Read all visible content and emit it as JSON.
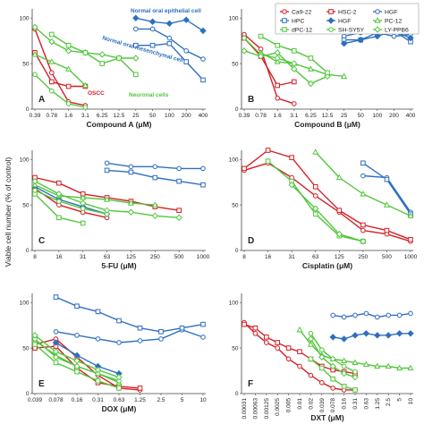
{
  "figure": {
    "ylabel": "Viable cell number (% of control)"
  },
  "legend": {
    "entries": [
      {
        "name": "Ca9-22",
        "color": "#d42027",
        "marker": "circle",
        "filled": false
      },
      {
        "name": "HSC-2",
        "color": "#d42027",
        "marker": "square",
        "filled": false
      },
      {
        "name": "HGF",
        "color": "#2e6fc0",
        "marker": "circle",
        "filled": false
      },
      {
        "name": "HPC",
        "color": "#2e6fc0",
        "marker": "square",
        "filled": false
      },
      {
        "name": "HGF",
        "color": "#2e6fc0",
        "marker": "diamond",
        "filled": true
      },
      {
        "name": "PC-12",
        "color": "#52c73c",
        "marker": "triangle",
        "filled": false
      },
      {
        "name": "dPC-12",
        "color": "#52c73c",
        "marker": "square",
        "filled": false
      },
      {
        "name": "SH-SY5Y",
        "color": "#52c73c",
        "marker": "circle",
        "filled": false
      },
      {
        "name": "LY-PPB6",
        "color": "#52c73c",
        "marker": "diamond",
        "filled": false
      }
    ]
  },
  "chart_data": [
    {
      "type": "line",
      "panel": "A",
      "xlabel": "Compound A (μM)",
      "categories": [
        "0.39",
        "0.78",
        "1.6",
        "3.1",
        "6.25",
        "12.5",
        "25",
        "50",
        "100",
        "200",
        "400"
      ],
      "ylim": [
        0,
        100
      ],
      "yticks": [
        0,
        50,
        100
      ],
      "annotations": [
        {
          "text": "Normal oral epithelial cell",
          "color": "#2e6fc0"
        },
        {
          "text": "Normal oral mesenchymal cell",
          "color": "#2e6fc0"
        },
        {
          "text": "OSCC",
          "color": "#d42027"
        },
        {
          "text": "Neuronal cells",
          "color": "#52c73c"
        }
      ],
      "series": [
        {
          "name": "Ca9-22",
          "values": [
            88,
            40,
            8,
            4,
            null,
            null,
            null,
            null,
            null,
            null,
            null
          ]
        },
        {
          "name": "HSC-2",
          "values": [
            62,
            30,
            25,
            25,
            null,
            null,
            null,
            null,
            null,
            null,
            null
          ]
        },
        {
          "name": "PC-12",
          "values": [
            60,
            52,
            44,
            26,
            null,
            null,
            null,
            null,
            null,
            null,
            null
          ]
        },
        {
          "name": "SH-SY5Y",
          "values": [
            38,
            20,
            6,
            2,
            null,
            null,
            null,
            null,
            null,
            null,
            null
          ]
        },
        {
          "name": "LY-PPB6",
          "values": [
            90,
            74,
            64,
            62,
            60,
            56,
            56,
            null,
            null,
            null,
            null
          ]
        },
        {
          "name": "HGF",
          "values": [
            null,
            null,
            null,
            null,
            null,
            null,
            88,
            88,
            78,
            64,
            55
          ]
        },
        {
          "name": "HPC",
          "values": [
            null,
            null,
            null,
            null,
            null,
            null,
            70,
            70,
            72,
            52,
            32
          ]
        },
        {
          "name": "HGF",
          "values": [
            null,
            null,
            null,
            null,
            null,
            null,
            100,
            96,
            94,
            98,
            86
          ]
        },
        {
          "name": "dPC-12",
          "values": [
            null,
            82,
            70,
            62,
            50,
            56,
            38,
            null,
            null,
            null,
            null
          ]
        }
      ]
    },
    {
      "type": "line",
      "panel": "B",
      "xlabel": "Compound B (μM)",
      "categories": [
        "0.39",
        "0.78",
        "1.6",
        "3.1",
        "6.25",
        "12.5",
        "25",
        "50",
        "100",
        "200",
        "400"
      ],
      "ylim": [
        0,
        100
      ],
      "yticks": [
        0,
        50,
        100
      ],
      "series": [
        {
          "name": "Ca9-22",
          "values": [
            82,
            66,
            12,
            6,
            null,
            null,
            null,
            null,
            null,
            null,
            null
          ]
        },
        {
          "name": "HSC-2",
          "values": [
            78,
            58,
            26,
            30,
            null,
            null,
            null,
            null,
            null,
            null,
            null
          ]
        },
        {
          "name": "PC-12",
          "values": [
            null,
            62,
            52,
            50,
            44,
            38,
            36,
            null,
            null,
            null,
            null
          ]
        },
        {
          "name": "SH-SY5Y",
          "values": [
            78,
            60,
            56,
            50,
            null,
            null,
            null,
            null,
            null,
            null,
            null
          ]
        },
        {
          "name": "LY-PPB6",
          "values": [
            64,
            58,
            62,
            44,
            28,
            36,
            null,
            null,
            null,
            null,
            null
          ]
        },
        {
          "name": "dPC-12",
          "values": [
            null,
            80,
            70,
            64,
            56,
            40,
            null,
            null,
            null,
            null,
            null
          ]
        },
        {
          "name": "HGF",
          "values": [
            null,
            null,
            null,
            null,
            null,
            null,
            80,
            84,
            84,
            80,
            82
          ]
        },
        {
          "name": "HPC",
          "values": [
            null,
            null,
            null,
            null,
            null,
            null,
            76,
            76,
            84,
            86,
            74
          ]
        },
        {
          "name": "HGF",
          "values": [
            null,
            null,
            null,
            null,
            null,
            null,
            72,
            76,
            80,
            86,
            78
          ]
        }
      ]
    },
    {
      "type": "line",
      "panel": "C",
      "xlabel": "5-FU (μM)",
      "categories": [
        "8",
        "16",
        "31",
        "63",
        "125",
        "250",
        "500",
        "1000"
      ],
      "ylim": [
        0,
        100
      ],
      "yticks": [
        0,
        50,
        100
      ],
      "series": [
        {
          "name": "Ca9-22",
          "values": [
            68,
            50,
            42,
            36,
            null,
            null,
            null,
            null
          ]
        },
        {
          "name": "HSC-2",
          "values": [
            80,
            74,
            62,
            58,
            54,
            48,
            44,
            null
          ]
        },
        {
          "name": "HGF",
          "values": [
            null,
            null,
            null,
            96,
            92,
            92,
            90,
            90
          ]
        },
        {
          "name": "HPC",
          "values": [
            null,
            null,
            null,
            88,
            86,
            80,
            76,
            72
          ]
        },
        {
          "name": "HGF",
          "values": [
            70,
            56,
            48,
            40,
            null,
            null,
            null,
            null
          ]
        },
        {
          "name": "PC-12",
          "values": [
            72,
            60,
            58,
            56,
            52,
            50,
            null,
            null
          ]
        },
        {
          "name": "dPC-12",
          "values": [
            62,
            36,
            30,
            null,
            null,
            null,
            null,
            null
          ]
        },
        {
          "name": "SH-SY5Y",
          "values": [
            66,
            54,
            46,
            40,
            null,
            null,
            null,
            null
          ]
        },
        {
          "name": "LY-PPB6",
          "values": [
            76,
            62,
            52,
            44,
            42,
            38,
            36,
            null
          ]
        }
      ]
    },
    {
      "type": "line",
      "panel": "D",
      "xlabel": "Cisplatin (μM)",
      "categories": [
        "8",
        "16",
        "31",
        "63",
        "125",
        "250",
        "500",
        "1000"
      ],
      "ylim": [
        0,
        100
      ],
      "yticks": [
        0,
        50,
        100
      ],
      "series": [
        {
          "name": "Ca9-22",
          "values": [
            88,
            96,
            80,
            60,
            42,
            22,
            18,
            10
          ]
        },
        {
          "name": "HSC-2",
          "values": [
            90,
            110,
            102,
            70,
            44,
            28,
            22,
            12
          ]
        },
        {
          "name": "HGF",
          "values": [
            null,
            null,
            null,
            null,
            null,
            82,
            80,
            42
          ]
        },
        {
          "name": "HPC",
          "values": [
            null,
            null,
            null,
            null,
            null,
            96,
            78,
            40
          ]
        },
        {
          "name": "PC-12",
          "values": [
            null,
            null,
            null,
            108,
            80,
            62,
            50,
            38
          ]
        },
        {
          "name": "dPC-12",
          "values": [
            null,
            98,
            76,
            40,
            16,
            10,
            null,
            null
          ]
        },
        {
          "name": "LY-PPB6",
          "values": [
            null,
            null,
            72,
            46,
            18,
            10,
            null,
            null
          ]
        }
      ]
    },
    {
      "type": "line",
      "panel": "E",
      "xlabel": "DOX (μM)",
      "categories": [
        "0.039",
        "0.078",
        "0.16",
        "0.31",
        "0.63",
        "1.25",
        "2.5",
        "5",
        "10"
      ],
      "ylim": [
        0,
        100
      ],
      "yticks": [
        0,
        50,
        100
      ],
      "series": [
        {
          "name": "Ca9-22",
          "values": [
            54,
            60,
            40,
            20,
            6,
            4,
            null,
            null,
            null
          ]
        },
        {
          "name": "HSC-2",
          "values": [
            50,
            52,
            28,
            12,
            8,
            6,
            null,
            null,
            null
          ]
        },
        {
          "name": "HGF",
          "values": [
            null,
            68,
            64,
            60,
            56,
            58,
            60,
            70,
            62
          ]
        },
        {
          "name": "HPC",
          "values": [
            null,
            106,
            96,
            90,
            80,
            72,
            68,
            72,
            76
          ]
        },
        {
          "name": "HGF",
          "values": [
            null,
            56,
            42,
            30,
            22,
            null,
            null,
            null,
            null
          ]
        },
        {
          "name": "PC-12",
          "values": [
            58,
            42,
            30,
            22,
            12,
            null,
            null,
            null,
            null
          ]
        },
        {
          "name": "dPC-12",
          "values": [
            54,
            34,
            24,
            14,
            6,
            null,
            null,
            null,
            null
          ]
        },
        {
          "name": "SH-SY5Y",
          "values": [
            60,
            40,
            30,
            22,
            14,
            null,
            null,
            null,
            null
          ]
        },
        {
          "name": "LY-PPB6",
          "values": [
            64,
            46,
            36,
            26,
            18,
            null,
            null,
            null,
            null
          ]
        }
      ]
    },
    {
      "type": "line",
      "panel": "F",
      "xlabel": "DXT (μM)",
      "categories": [
        "0.00031",
        "0.00063",
        "0.00125",
        "0.0025",
        "0.005",
        "0.01",
        "0.02",
        "0.039",
        "0.078",
        "0.16",
        "0.31",
        "0.63",
        "1.25",
        "2.5",
        "5",
        "10"
      ],
      "ylim": [
        0,
        100
      ],
      "yticks": [
        0,
        50,
        100
      ],
      "series": [
        {
          "name": "Ca9-22",
          "values": [
            78,
            66,
            56,
            50,
            38,
            30,
            20,
            12,
            6,
            4,
            4,
            null,
            null,
            null,
            null,
            null
          ]
        },
        {
          "name": "HSC-2",
          "values": [
            76,
            72,
            62,
            56,
            50,
            46,
            38,
            30,
            26,
            24,
            22,
            null,
            null,
            null,
            null,
            null
          ]
        },
        {
          "name": "PC-12",
          "values": [
            null,
            null,
            null,
            null,
            null,
            70,
            54,
            42,
            38,
            36,
            34,
            32,
            30,
            30,
            28,
            28
          ]
        },
        {
          "name": "dPC-12",
          "values": [
            null,
            null,
            null,
            null,
            null,
            null,
            38,
            28,
            16,
            8,
            4,
            null,
            null,
            null,
            null,
            null
          ]
        },
        {
          "name": "SH-SY5Y",
          "values": [
            null,
            null,
            null,
            null,
            null,
            null,
            66,
            48,
            38,
            30,
            24,
            null,
            null,
            null,
            null,
            null
          ]
        },
        {
          "name": "LY-PPB6",
          "values": [
            null,
            null,
            null,
            null,
            null,
            null,
            60,
            40,
            30,
            22,
            18,
            null,
            null,
            null,
            null,
            null
          ]
        },
        {
          "name": "HGF",
          "values": [
            null,
            null,
            null,
            null,
            null,
            null,
            null,
            null,
            86,
            84,
            86,
            88,
            84,
            86,
            86,
            88
          ]
        },
        {
          "name": "HGF",
          "values": [
            null,
            null,
            null,
            null,
            null,
            null,
            null,
            null,
            62,
            60,
            64,
            66,
            64,
            64,
            66,
            66
          ]
        }
      ]
    }
  ]
}
